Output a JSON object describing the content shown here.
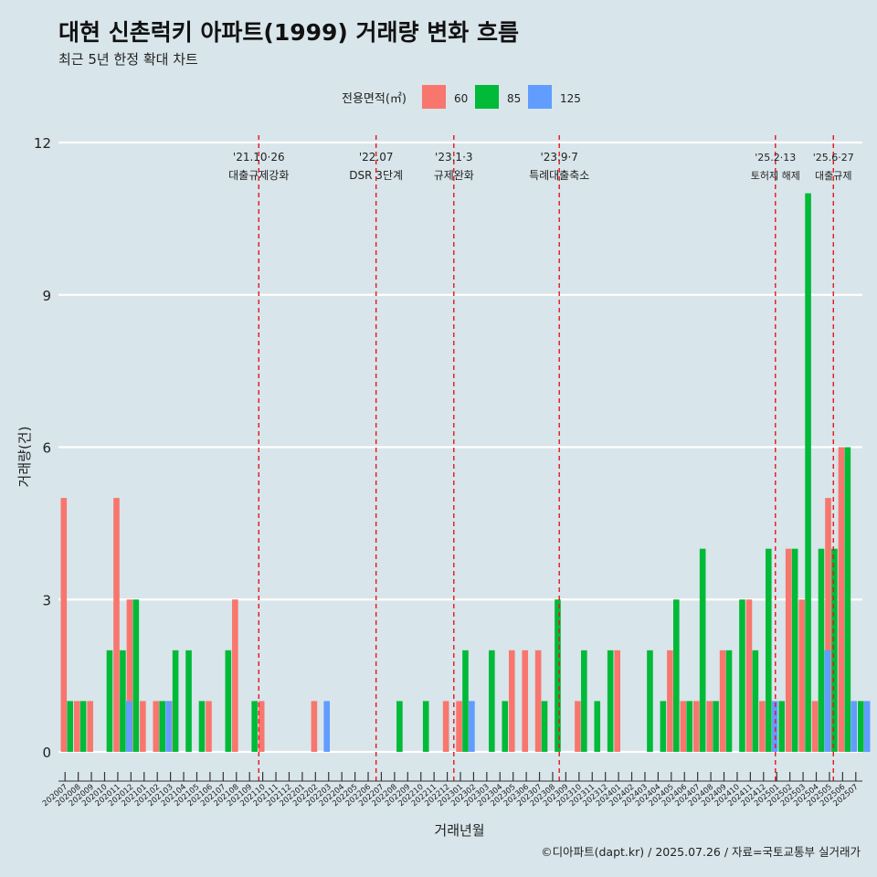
{
  "title": "대현 신촌럭키 아파트(1999) 거래량 변화 흐름",
  "subtitle": "최근 5년 한정 확대 차트",
  "footer": "©디아파트(dapt.kr) / 2025.07.26 / 자료=국토교통부 실거래가",
  "colors": {
    "background": "#d8e5ea",
    "s60": "#f8766d",
    "s85": "#00ba38",
    "s125": "#619cff",
    "event_line": "#e8141b",
    "grid": "#ffffff"
  },
  "chart_data": {
    "type": "bar",
    "title": "대현 신촌럭키 아파트(1999) 거래량 변화 흐름",
    "subtitle": "최근 5년 한정 확대 차트",
    "xlabel": "거래년월",
    "ylabel": "거래량(건)",
    "ylim": [
      0,
      12
    ],
    "yticks": [
      0,
      3,
      6,
      9,
      12
    ],
    "grid": true,
    "legend_title": "전용면적(㎡)",
    "legend_position": "top",
    "categories": [
      "202007",
      "202008",
      "202009",
      "202010",
      "202011",
      "202012",
      "202101",
      "202102",
      "202103",
      "202104",
      "202105",
      "202106",
      "202107",
      "202108",
      "202109",
      "202110",
      "202111",
      "202112",
      "202201",
      "202202",
      "202203",
      "202204",
      "202205",
      "202206",
      "202207",
      "202208",
      "202209",
      "202210",
      "202211",
      "202212",
      "202301",
      "202302",
      "202303",
      "202304",
      "202305",
      "202306",
      "202307",
      "202308",
      "202309",
      "202310",
      "202311",
      "202312",
      "202401",
      "202402",
      "202403",
      "202404",
      "202405",
      "202406",
      "202407",
      "202408",
      "202409",
      "202410",
      "202411",
      "202412",
      "202501",
      "202502",
      "202503",
      "202504",
      "202505",
      "202506",
      "202507"
    ],
    "series": [
      {
        "name": "60",
        "values": [
          5,
          1,
          1,
          0,
          5,
          3,
          1,
          1,
          1,
          0,
          0,
          1,
          0,
          3,
          0,
          1,
          0,
          0,
          0,
          1,
          0,
          0,
          0,
          0,
          0,
          0,
          0,
          0,
          0,
          1,
          1,
          0,
          0,
          0,
          2,
          2,
          2,
          0,
          0,
          1,
          0,
          0,
          2,
          0,
          0,
          0,
          2,
          1,
          1,
          1,
          2,
          0,
          3,
          1,
          0,
          4,
          3,
          1,
          5,
          6,
          0
        ]
      },
      {
        "name": "85",
        "values": [
          1,
          1,
          0,
          2,
          2,
          3,
          0,
          1,
          2,
          2,
          1,
          0,
          2,
          0,
          1,
          0,
          0,
          0,
          0,
          0,
          0,
          0,
          0,
          0,
          0,
          1,
          0,
          1,
          0,
          0,
          2,
          0,
          2,
          1,
          0,
          0,
          1,
          3,
          0,
          2,
          1,
          2,
          0,
          0,
          2,
          1,
          3,
          1,
          4,
          1,
          2,
          3,
          2,
          4,
          1,
          4,
          11,
          4,
          4,
          6,
          1
        ]
      },
      {
        "name": "125",
        "values": [
          0,
          0,
          0,
          0,
          1,
          0,
          0,
          1,
          0,
          0,
          0,
          0,
          0,
          0,
          0,
          0,
          0,
          0,
          0,
          1,
          0,
          0,
          0,
          0,
          0,
          0,
          0,
          0,
          0,
          0,
          1,
          0,
          0,
          0,
          0,
          0,
          0,
          0,
          0,
          0,
          0,
          0,
          0,
          0,
          0,
          0,
          0,
          0,
          0,
          0,
          0,
          0,
          0,
          1,
          0,
          0,
          0,
          2,
          0,
          1,
          1
        ]
      }
    ],
    "events": [
      {
        "date": "'21.10·26",
        "label": "대출규제강화",
        "position": 15.2
      },
      {
        "date": "'22.07",
        "label": "DSR 3단계",
        "position": 24.1
      },
      {
        "date": "'23.1·3",
        "label": "규제완화",
        "position": 30.0
      },
      {
        "date": "'23.9·7",
        "label": "특례대출축소",
        "position": 38.0
      },
      {
        "date": "'25.2·13",
        "label": "토허제 해제",
        "position": 54.4
      },
      {
        "date": "'25.6·27",
        "label": "대출규제",
        "position": 58.8
      }
    ]
  }
}
